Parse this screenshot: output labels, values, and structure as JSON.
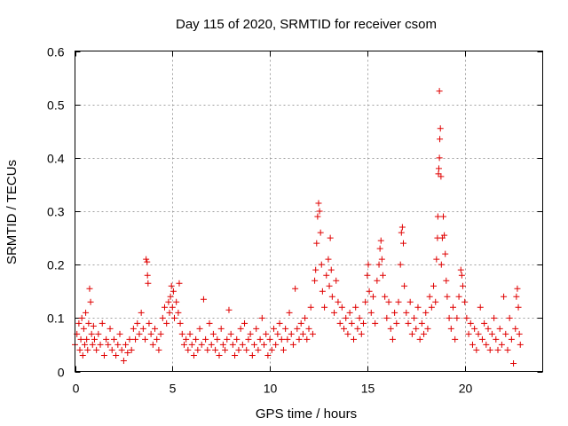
{
  "chart_data": {
    "type": "scatter",
    "title": "Day 115 of 2020, SRMTID for receiver csom",
    "xlabel": "GPS time / hours",
    "ylabel": "SRMTID / TECUs",
    "xlim": [
      0,
      24
    ],
    "ylim": [
      0,
      0.6
    ],
    "xticks": [
      0,
      5,
      10,
      15,
      20
    ],
    "xtick_labels": [
      "0",
      "5",
      "10",
      "15",
      "20"
    ],
    "yticks": [
      0,
      0.1,
      0.2,
      0.3,
      0.4,
      0.5,
      0.6
    ],
    "ytick_labels": [
      "0",
      "0.1",
      "0.2",
      "0.3",
      "0.4",
      "0.5",
      "0.6"
    ],
    "grid": true,
    "marker": "+",
    "color": "#e00000",
    "series": [
      {
        "name": "SRMTID",
        "points": [
          [
            0.0,
            0.05
          ],
          [
            0.1,
            0.07
          ],
          [
            0.2,
            0.09
          ],
          [
            0.25,
            0.04
          ],
          [
            0.3,
            0.06
          ],
          [
            0.35,
            0.1
          ],
          [
            0.4,
            0.03
          ],
          [
            0.45,
            0.08
          ],
          [
            0.5,
            0.05
          ],
          [
            0.55,
            0.11
          ],
          [
            0.6,
            0.06
          ],
          [
            0.65,
            0.04
          ],
          [
            0.7,
            0.09
          ],
          [
            0.75,
            0.155
          ],
          [
            0.8,
            0.13
          ],
          [
            0.85,
            0.07
          ],
          [
            0.9,
            0.05
          ],
          [
            0.95,
            0.085
          ],
          [
            1.0,
            0.06
          ],
          [
            1.1,
            0.04
          ],
          [
            1.2,
            0.07
          ],
          [
            1.3,
            0.05
          ],
          [
            1.4,
            0.09
          ],
          [
            1.5,
            0.03
          ],
          [
            1.6,
            0.06
          ],
          [
            1.7,
            0.05
          ],
          [
            1.8,
            0.08
          ],
          [
            1.9,
            0.04
          ],
          [
            2.0,
            0.06
          ],
          [
            2.1,
            0.03
          ],
          [
            2.2,
            0.05
          ],
          [
            2.3,
            0.07
          ],
          [
            2.4,
            0.04
          ],
          [
            2.5,
            0.02
          ],
          [
            2.6,
            0.05
          ],
          [
            2.7,
            0.035
          ],
          [
            2.8,
            0.06
          ],
          [
            2.9,
            0.04
          ],
          [
            3.0,
            0.08
          ],
          [
            3.1,
            0.06
          ],
          [
            3.2,
            0.09
          ],
          [
            3.3,
            0.07
          ],
          [
            3.4,
            0.11
          ],
          [
            3.5,
            0.08
          ],
          [
            3.6,
            0.06
          ],
          [
            3.65,
            0.21
          ],
          [
            3.7,
            0.205
          ],
          [
            3.72,
            0.18
          ],
          [
            3.75,
            0.165
          ],
          [
            3.8,
            0.09
          ],
          [
            3.9,
            0.07
          ],
          [
            4.0,
            0.05
          ],
          [
            4.1,
            0.08
          ],
          [
            4.2,
            0.06
          ],
          [
            4.3,
            0.04
          ],
          [
            4.4,
            0.07
          ],
          [
            4.5,
            0.1
          ],
          [
            4.6,
            0.12
          ],
          [
            4.7,
            0.09
          ],
          [
            4.8,
            0.13
          ],
          [
            4.85,
            0.11
          ],
          [
            4.9,
            0.14
          ],
          [
            4.95,
            0.16
          ],
          [
            5.0,
            0.12
          ],
          [
            5.05,
            0.15
          ],
          [
            5.1,
            0.1
          ],
          [
            5.2,
            0.13
          ],
          [
            5.3,
            0.11
          ],
          [
            5.35,
            0.165
          ],
          [
            5.4,
            0.09
          ],
          [
            5.5,
            0.07
          ],
          [
            5.6,
            0.05
          ],
          [
            5.7,
            0.06
          ],
          [
            5.8,
            0.04
          ],
          [
            5.9,
            0.07
          ],
          [
            6.0,
            0.05
          ],
          [
            6.1,
            0.03
          ],
          [
            6.2,
            0.06
          ],
          [
            6.3,
            0.04
          ],
          [
            6.4,
            0.08
          ],
          [
            6.5,
            0.05
          ],
          [
            6.6,
            0.135
          ],
          [
            6.7,
            0.06
          ],
          [
            6.8,
            0.04
          ],
          [
            6.9,
            0.09
          ],
          [
            7.0,
            0.05
          ],
          [
            7.1,
            0.07
          ],
          [
            7.2,
            0.04
          ],
          [
            7.3,
            0.06
          ],
          [
            7.4,
            0.03
          ],
          [
            7.5,
            0.08
          ],
          [
            7.6,
            0.05
          ],
          [
            7.7,
            0.04
          ],
          [
            7.8,
            0.06
          ],
          [
            7.9,
            0.115
          ],
          [
            8.0,
            0.07
          ],
          [
            8.1,
            0.05
          ],
          [
            8.2,
            0.03
          ],
          [
            8.3,
            0.06
          ],
          [
            8.4,
            0.04
          ],
          [
            8.5,
            0.08
          ],
          [
            8.6,
            0.05
          ],
          [
            8.7,
            0.09
          ],
          [
            8.8,
            0.04
          ],
          [
            8.9,
            0.06
          ],
          [
            9.0,
            0.07
          ],
          [
            9.1,
            0.03
          ],
          [
            9.2,
            0.05
          ],
          [
            9.3,
            0.08
          ],
          [
            9.4,
            0.04
          ],
          [
            9.5,
            0.06
          ],
          [
            9.6,
            0.1
          ],
          [
            9.7,
            0.05
          ],
          [
            9.8,
            0.07
          ],
          [
            9.9,
            0.03
          ],
          [
            10.0,
            0.06
          ],
          [
            10.1,
            0.04
          ],
          [
            10.2,
            0.08
          ],
          [
            10.3,
            0.05
          ],
          [
            10.4,
            0.07
          ],
          [
            10.5,
            0.09
          ],
          [
            10.6,
            0.06
          ],
          [
            10.7,
            0.04
          ],
          [
            10.8,
            0.08
          ],
          [
            10.9,
            0.06
          ],
          [
            11.0,
            0.11
          ],
          [
            11.1,
            0.07
          ],
          [
            11.2,
            0.05
          ],
          [
            11.3,
            0.155
          ],
          [
            11.4,
            0.08
          ],
          [
            11.5,
            0.06
          ],
          [
            11.6,
            0.09
          ],
          [
            11.7,
            0.07
          ],
          [
            11.8,
            0.1
          ],
          [
            11.9,
            0.06
          ],
          [
            12.0,
            0.08
          ],
          [
            12.1,
            0.12
          ],
          [
            12.2,
            0.07
          ],
          [
            12.3,
            0.17
          ],
          [
            12.35,
            0.19
          ],
          [
            12.4,
            0.24
          ],
          [
            12.45,
            0.29
          ],
          [
            12.5,
            0.315
          ],
          [
            12.55,
            0.3
          ],
          [
            12.6,
            0.26
          ],
          [
            12.65,
            0.2
          ],
          [
            12.7,
            0.15
          ],
          [
            12.8,
            0.12
          ],
          [
            12.9,
            0.18
          ],
          [
            13.0,
            0.21
          ],
          [
            13.05,
            0.16
          ],
          [
            13.1,
            0.25
          ],
          [
            13.15,
            0.19
          ],
          [
            13.2,
            0.14
          ],
          [
            13.3,
            0.11
          ],
          [
            13.4,
            0.17
          ],
          [
            13.5,
            0.13
          ],
          [
            13.6,
            0.09
          ],
          [
            13.7,
            0.12
          ],
          [
            13.8,
            0.08
          ],
          [
            13.9,
            0.1
          ],
          [
            14.0,
            0.07
          ],
          [
            14.1,
            0.11
          ],
          [
            14.2,
            0.09
          ],
          [
            14.3,
            0.06
          ],
          [
            14.4,
            0.12
          ],
          [
            14.5,
            0.08
          ],
          [
            14.6,
            0.1
          ],
          [
            14.7,
            0.07
          ],
          [
            14.8,
            0.09
          ],
          [
            14.9,
            0.13
          ],
          [
            15.0,
            0.18
          ],
          [
            15.05,
            0.2
          ],
          [
            15.1,
            0.15
          ],
          [
            15.2,
            0.11
          ],
          [
            15.3,
            0.14
          ],
          [
            15.4,
            0.09
          ],
          [
            15.5,
            0.17
          ],
          [
            15.6,
            0.2
          ],
          [
            15.65,
            0.23
          ],
          [
            15.7,
            0.245
          ],
          [
            15.75,
            0.21
          ],
          [
            15.8,
            0.18
          ],
          [
            15.9,
            0.14
          ],
          [
            16.0,
            0.1
          ],
          [
            16.1,
            0.13
          ],
          [
            16.2,
            0.08
          ],
          [
            16.3,
            0.06
          ],
          [
            16.4,
            0.11
          ],
          [
            16.5,
            0.09
          ],
          [
            16.6,
            0.13
          ],
          [
            16.7,
            0.2
          ],
          [
            16.75,
            0.26
          ],
          [
            16.8,
            0.27
          ],
          [
            16.85,
            0.24
          ],
          [
            16.9,
            0.16
          ],
          [
            17.0,
            0.11
          ],
          [
            17.1,
            0.09
          ],
          [
            17.2,
            0.13
          ],
          [
            17.3,
            0.07
          ],
          [
            17.4,
            0.1
          ],
          [
            17.5,
            0.08
          ],
          [
            17.6,
            0.12
          ],
          [
            17.7,
            0.06
          ],
          [
            17.8,
            0.09
          ],
          [
            17.9,
            0.07
          ],
          [
            18.0,
            0.11
          ],
          [
            18.1,
            0.08
          ],
          [
            18.2,
            0.14
          ],
          [
            18.3,
            0.12
          ],
          [
            18.4,
            0.16
          ],
          [
            18.5,
            0.13
          ],
          [
            18.55,
            0.21
          ],
          [
            18.6,
            0.25
          ],
          [
            18.62,
            0.29
          ],
          [
            18.65,
            0.37
          ],
          [
            18.67,
            0.38
          ],
          [
            18.7,
            0.4
          ],
          [
            18.72,
            0.435
          ],
          [
            18.75,
            0.455
          ],
          [
            18.7,
            0.525
          ],
          [
            18.78,
            0.365
          ],
          [
            18.8,
            0.2
          ],
          [
            18.85,
            0.25
          ],
          [
            18.9,
            0.29
          ],
          [
            18.95,
            0.255
          ],
          [
            19.0,
            0.22
          ],
          [
            19.05,
            0.17
          ],
          [
            19.1,
            0.14
          ],
          [
            19.2,
            0.1
          ],
          [
            19.3,
            0.08
          ],
          [
            19.4,
            0.12
          ],
          [
            19.5,
            0.06
          ],
          [
            19.6,
            0.1
          ],
          [
            19.7,
            0.14
          ],
          [
            19.8,
            0.19
          ],
          [
            19.85,
            0.18
          ],
          [
            19.9,
            0.16
          ],
          [
            20.0,
            0.13
          ],
          [
            20.1,
            0.1
          ],
          [
            20.2,
            0.07
          ],
          [
            20.3,
            0.09
          ],
          [
            20.4,
            0.05
          ],
          [
            20.5,
            0.08
          ],
          [
            20.6,
            0.04
          ],
          [
            20.7,
            0.07
          ],
          [
            20.8,
            0.12
          ],
          [
            20.9,
            0.06
          ],
          [
            21.0,
            0.09
          ],
          [
            21.1,
            0.05
          ],
          [
            21.2,
            0.08
          ],
          [
            21.3,
            0.04
          ],
          [
            21.4,
            0.07
          ],
          [
            21.5,
            0.1
          ],
          [
            21.6,
            0.06
          ],
          [
            21.7,
            0.04
          ],
          [
            21.8,
            0.08
          ],
          [
            21.9,
            0.05
          ],
          [
            22.0,
            0.14
          ],
          [
            22.1,
            0.07
          ],
          [
            22.2,
            0.04
          ],
          [
            22.3,
            0.1
          ],
          [
            22.4,
            0.06
          ],
          [
            22.5,
            0.015
          ],
          [
            22.6,
            0.08
          ],
          [
            22.65,
            0.14
          ],
          [
            22.7,
            0.155
          ],
          [
            22.75,
            0.12
          ],
          [
            22.8,
            0.07
          ],
          [
            22.85,
            0.05
          ]
        ]
      }
    ]
  }
}
